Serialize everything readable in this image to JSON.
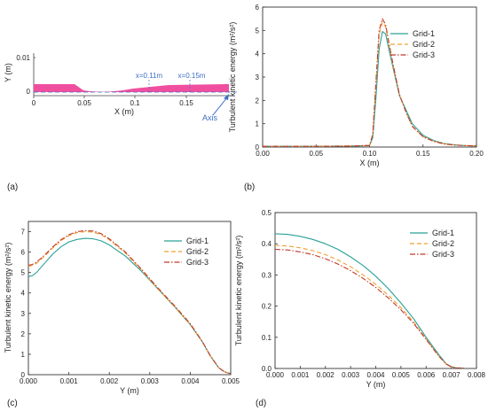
{
  "colors": {
    "grid1": "#2aa198",
    "grid2": "#f0a030",
    "grid3": "#c0392b",
    "geometry": "#f04fa0",
    "annotation": "#3a6fc4"
  },
  "panel_a": {
    "label": "(a)",
    "ylabel": "Y (m)",
    "xlabel": "X (m)",
    "yticks": [
      "0.01",
      "0"
    ],
    "xticks": [
      "0",
      "0.05",
      "0.1",
      "0.15"
    ],
    "marker_1": "x=0.11m",
    "marker_2": "x=0.15m",
    "axis_label": "Axis"
  },
  "chart_data": [
    {
      "id": "b",
      "type": "line",
      "panel_label": "(b)",
      "xlabel": "X (m)",
      "ylabel": "Turbulent kinetic energy (m²/s²)",
      "xlim": [
        0,
        0.2
      ],
      "ylim": [
        0,
        6
      ],
      "xticks": [
        "0.00",
        "0.05",
        "0.10",
        "0.15",
        "0.20"
      ],
      "yticks": [
        "0",
        "1",
        "2",
        "3",
        "4",
        "5",
        "6"
      ],
      "legend": "top-right",
      "series": [
        {
          "name": "Grid-1",
          "x": [
            0,
            0.02,
            0.05,
            0.08,
            0.1,
            0.103,
            0.106,
            0.109,
            0.112,
            0.115,
            0.118,
            0.122,
            0.128,
            0.134,
            0.14,
            0.15,
            0.16,
            0.17,
            0.18,
            0.19,
            0.2
          ],
          "y": [
            0.03,
            0.03,
            0.03,
            0.04,
            0.06,
            0.4,
            2.1,
            4.2,
            4.95,
            4.85,
            4.2,
            3.4,
            2.2,
            1.6,
            1.0,
            0.5,
            0.28,
            0.15,
            0.09,
            0.06,
            0.05
          ]
        },
        {
          "name": "Grid-2",
          "x": [
            0,
            0.02,
            0.05,
            0.08,
            0.1,
            0.103,
            0.106,
            0.109,
            0.112,
            0.115,
            0.118,
            0.122,
            0.128,
            0.134,
            0.14,
            0.15,
            0.16,
            0.17,
            0.18,
            0.19,
            0.2
          ],
          "y": [
            0.03,
            0.03,
            0.03,
            0.04,
            0.07,
            0.5,
            2.6,
            4.8,
            5.35,
            5.15,
            4.4,
            3.5,
            2.25,
            1.5,
            0.9,
            0.45,
            0.25,
            0.14,
            0.08,
            0.06,
            0.05
          ]
        },
        {
          "name": "Grid-3",
          "x": [
            0,
            0.02,
            0.05,
            0.08,
            0.1,
            0.103,
            0.106,
            0.109,
            0.112,
            0.115,
            0.118,
            0.122,
            0.128,
            0.134,
            0.14,
            0.15,
            0.16,
            0.17,
            0.18,
            0.19,
            0.2
          ],
          "y": [
            0.03,
            0.03,
            0.03,
            0.04,
            0.07,
            0.55,
            2.8,
            5.0,
            5.5,
            5.25,
            4.5,
            3.55,
            2.25,
            1.5,
            0.88,
            0.44,
            0.24,
            0.13,
            0.08,
            0.06,
            0.05
          ]
        }
      ]
    },
    {
      "id": "c",
      "type": "line",
      "panel_label": "(c)",
      "xlabel": "Y (m)",
      "ylabel": "Turbulent kinetic energy (m²/s²)",
      "xlim": [
        0,
        0.005
      ],
      "ylim": [
        0,
        7.5
      ],
      "xticks": [
        "0.000",
        "0.001",
        "0.002",
        "0.003",
        "0.004",
        "0.005"
      ],
      "yticks": [
        "0",
        "1",
        "2",
        "3",
        "4",
        "5",
        "6",
        "7"
      ],
      "legend": "top-right",
      "series": [
        {
          "name": "Grid-1",
          "x": [
            0,
            0.0001,
            0.0002,
            0.0004,
            0.0006,
            0.0008,
            0.001,
            0.0012,
            0.0014,
            0.0016,
            0.0018,
            0.002,
            0.0024,
            0.0028,
            0.0032,
            0.0036,
            0.004,
            0.0043,
            0.0045,
            0.0047,
            0.0048,
            0.0049,
            0.005
          ],
          "y": [
            4.8,
            4.85,
            5.0,
            5.45,
            5.9,
            6.25,
            6.5,
            6.62,
            6.67,
            6.65,
            6.55,
            6.35,
            5.8,
            5.05,
            4.2,
            3.35,
            2.45,
            1.6,
            0.9,
            0.35,
            0.2,
            0.1,
            0.05
          ]
        },
        {
          "name": "Grid-2",
          "x": [
            0,
            0.0001,
            0.0002,
            0.0004,
            0.0006,
            0.0008,
            0.001,
            0.0012,
            0.0014,
            0.0016,
            0.0018,
            0.002,
            0.0024,
            0.0028,
            0.0032,
            0.0036,
            0.004,
            0.0043,
            0.0045,
            0.0047,
            0.0048,
            0.0049,
            0.005
          ],
          "y": [
            5.3,
            5.35,
            5.45,
            5.8,
            6.2,
            6.55,
            6.8,
            6.95,
            7.0,
            6.98,
            6.85,
            6.6,
            5.95,
            5.1,
            4.2,
            3.35,
            2.45,
            1.6,
            0.9,
            0.35,
            0.2,
            0.1,
            0.05
          ]
        },
        {
          "name": "Grid-3",
          "x": [
            0,
            0.0001,
            0.0002,
            0.0004,
            0.0006,
            0.0008,
            0.001,
            0.0012,
            0.0014,
            0.0016,
            0.0018,
            0.002,
            0.0024,
            0.0028,
            0.0032,
            0.0036,
            0.004,
            0.0043,
            0.0045,
            0.0047,
            0.0048,
            0.0049,
            0.005
          ],
          "y": [
            5.35,
            5.4,
            5.5,
            5.85,
            6.25,
            6.6,
            6.85,
            7.0,
            7.05,
            7.03,
            6.9,
            6.65,
            6.0,
            5.15,
            4.25,
            3.4,
            2.5,
            1.62,
            0.92,
            0.36,
            0.2,
            0.1,
            0.05
          ]
        }
      ]
    },
    {
      "id": "d",
      "type": "line",
      "panel_label": "(d)",
      "xlabel": "Y (m)",
      "ylabel": "Turbulent kinetic energy (m²/s²)",
      "xlim": [
        0,
        0.008
      ],
      "ylim": [
        0,
        0.5
      ],
      "xticks": [
        "0.000",
        "0.001",
        "0.002",
        "0.003",
        "0.004",
        "0.005",
        "0.006",
        "0.007",
        "0.008"
      ],
      "yticks": [
        "0.0",
        "0.1",
        "0.2",
        "0.3",
        "0.4",
        "0.5"
      ],
      "legend": "top-right",
      "series": [
        {
          "name": "Grid-1",
          "x": [
            0,
            0.0005,
            0.001,
            0.0015,
            0.002,
            0.0025,
            0.003,
            0.0035,
            0.004,
            0.0045,
            0.005,
            0.0055,
            0.006,
            0.0065,
            0.0068,
            0.007,
            0.0072,
            0.0075
          ],
          "y": [
            0.432,
            0.43,
            0.424,
            0.414,
            0.4,
            0.382,
            0.358,
            0.33,
            0.296,
            0.256,
            0.21,
            0.16,
            0.1,
            0.045,
            0.015,
            0.006,
            0.002,
            0.001
          ]
        },
        {
          "name": "Grid-2",
          "x": [
            0,
            0.0005,
            0.001,
            0.0015,
            0.002,
            0.0025,
            0.003,
            0.0035,
            0.004,
            0.0045,
            0.005,
            0.0055,
            0.006,
            0.0065,
            0.0068,
            0.007,
            0.0072,
            0.0075
          ],
          "y": [
            0.395,
            0.393,
            0.387,
            0.378,
            0.365,
            0.348,
            0.326,
            0.3,
            0.27,
            0.235,
            0.195,
            0.15,
            0.095,
            0.04,
            0.014,
            0.005,
            0.002,
            0.001
          ]
        },
        {
          "name": "Grid-3",
          "x": [
            0,
            0.0005,
            0.001,
            0.0015,
            0.002,
            0.0025,
            0.003,
            0.0035,
            0.004,
            0.0045,
            0.005,
            0.0055,
            0.006,
            0.0065,
            0.0068,
            0.007,
            0.0072,
            0.0075
          ],
          "y": [
            0.382,
            0.38,
            0.374,
            0.365,
            0.352,
            0.335,
            0.314,
            0.289,
            0.26,
            0.226,
            0.188,
            0.145,
            0.093,
            0.04,
            0.014,
            0.005,
            0.002,
            0.001
          ]
        }
      ]
    }
  ]
}
